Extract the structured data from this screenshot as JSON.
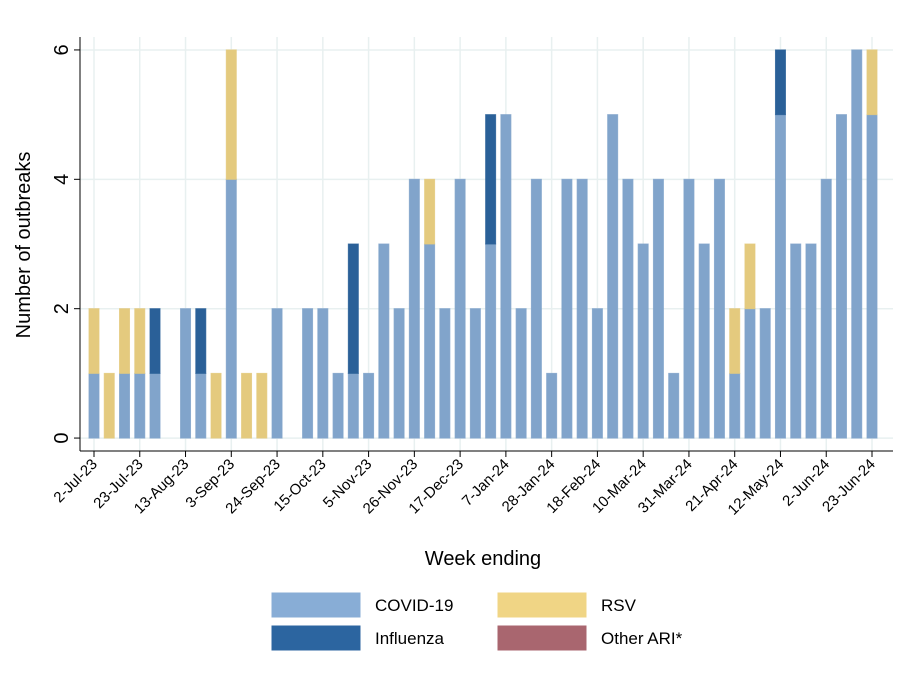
{
  "chart_data": {
    "type": "stacked-bar",
    "x_label": "Week ending",
    "y_label": "Number of outbreaks",
    "categories": [
      "2-Jul-23",
      null,
      null,
      "23-Jul-23",
      null,
      null,
      "13-Aug-23",
      null,
      null,
      "3-Sep-23",
      null,
      null,
      "24-Sep-23",
      null,
      null,
      "15-Oct-23",
      null,
      null,
      "5-Nov-23",
      null,
      null,
      "26-Nov-23",
      null,
      null,
      "17-Dec-23",
      null,
      null,
      "7-Jan-24",
      null,
      null,
      "28-Jan-24",
      null,
      null,
      "18-Feb-24",
      null,
      null,
      "10-Mar-24",
      null,
      null,
      "31-Mar-24",
      null,
      null,
      "21-Apr-24",
      null,
      null,
      "12-May-24",
      null,
      null,
      "2-Jun-24",
      null,
      null,
      "23-Jun-24"
    ],
    "series": [
      {
        "name": "COVID-19",
        "color": "#88add6",
        "values": [
          1,
          0,
          1,
          1,
          1,
          0,
          2,
          1,
          0,
          4,
          0,
          0,
          2,
          0,
          2,
          2,
          1,
          1,
          1,
          3,
          2,
          4,
          3,
          2,
          4,
          2,
          3,
          5,
          2,
          4,
          1,
          4,
          4,
          2,
          5,
          4,
          3,
          4,
          1,
          4,
          3,
          4,
          1,
          2,
          2,
          5,
          3,
          3,
          4,
          5,
          6,
          5
        ]
      },
      {
        "name": "Influenza",
        "color": "#2c65a0",
        "values": [
          0,
          0,
          0,
          0,
          1,
          0,
          0,
          1,
          0,
          0,
          0,
          0,
          0,
          0,
          0,
          0,
          0,
          2,
          0,
          0,
          0,
          0,
          0,
          0,
          0,
          0,
          2,
          0,
          0,
          0,
          0,
          0,
          0,
          0,
          0,
          0,
          0,
          0,
          0,
          0,
          0,
          0,
          0,
          0,
          0,
          1,
          0,
          0,
          0,
          0,
          0,
          0
        ]
      },
      {
        "name": "RSV",
        "color": "#f0d585",
        "values": [
          1,
          1,
          1,
          1,
          0,
          0,
          0,
          0,
          1,
          2,
          1,
          1,
          0,
          0,
          0,
          0,
          0,
          0,
          0,
          0,
          0,
          0,
          1,
          0,
          0,
          0,
          0,
          0,
          0,
          0,
          0,
          0,
          0,
          0,
          0,
          0,
          0,
          0,
          0,
          0,
          0,
          0,
          1,
          1,
          0,
          0,
          0,
          0,
          0,
          0,
          0,
          1
        ]
      },
      {
        "name": "Other ARI*",
        "color": "#a9666f",
        "values": [
          0,
          0,
          0,
          0,
          0,
          0,
          0,
          0,
          0,
          0,
          0,
          0,
          0,
          0,
          0,
          0,
          0,
          0,
          0,
          0,
          0,
          0,
          0,
          0,
          0,
          0,
          0,
          0,
          0,
          0,
          0,
          0,
          0,
          0,
          0,
          0,
          0,
          0,
          0,
          0,
          0,
          0,
          0,
          0,
          0,
          0,
          0,
          0,
          0,
          0,
          0,
          0
        ]
      }
    ],
    "ylim": [
      -0.2,
      6.2
    ],
    "yticks": [
      0,
      2,
      4,
      6
    ],
    "grid": true
  }
}
